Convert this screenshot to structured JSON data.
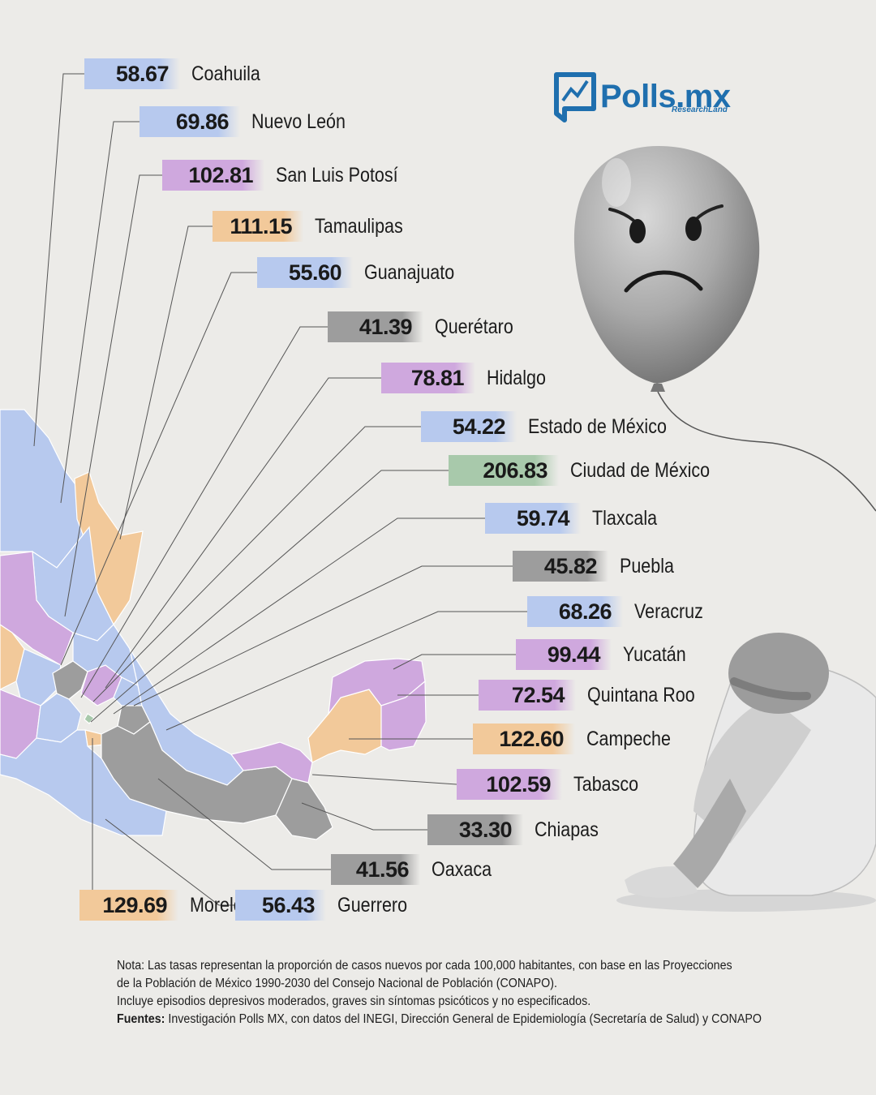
{
  "brand": {
    "name": "Polls.mx",
    "sub": "ResearchLand"
  },
  "colors": {
    "blue": "#b7c9ee",
    "purple": "#cfa8de",
    "orange": "#f2c99a",
    "gray": "#9d9d9d",
    "green": "#a8c9ab"
  },
  "chart_data": {
    "type": "table",
    "title": "",
    "categories": [
      "Coahuila",
      "Nuevo León",
      "San Luis Potosí",
      "Tamaulipas",
      "Guanajuato",
      "Querétaro",
      "Hidalgo",
      "Estado de México",
      "Ciudad de México",
      "Tlaxcala",
      "Puebla",
      "Veracruz",
      "Yucatán",
      "Quintana Roo",
      "Campeche",
      "Tabasco",
      "Chiapas",
      "Oaxaca",
      "Morelos",
      "Guerrero"
    ],
    "values": [
      58.67,
      69.86,
      102.81,
      111.15,
      55.6,
      41.39,
      78.81,
      54.22,
      206.83,
      59.74,
      45.82,
      68.26,
      99.44,
      72.54,
      122.6,
      102.59,
      33.3,
      41.56,
      129.69,
      56.43
    ],
    "labels": [
      "58.67",
      "69.86",
      "102.81",
      "111.15",
      "55.60",
      "41.39",
      "78.81",
      "54.22",
      "206.83",
      "59.74",
      "45.82",
      "68.26",
      "99.44",
      "72.54",
      "122.60",
      "102.59",
      "33.30",
      "41.56",
      "129.69",
      "56.43"
    ],
    "color_groups": [
      "blue",
      "blue",
      "purple",
      "orange",
      "blue",
      "gray",
      "purple",
      "blue",
      "green",
      "blue",
      "gray",
      "blue",
      "purple",
      "purple",
      "orange",
      "purple",
      "gray",
      "gray",
      "orange",
      "blue"
    ]
  },
  "note": {
    "line1": "Nota: Las tasas representan la proporción de casos nuevos por cada 100,000 habitantes, con base en las Proyecciones",
    "line2": "de la Población de México 1990-2030 del Consejo Nacional de Población (CONAPO).",
    "line3": "Incluye episodios depresivos moderados, graves sin síntomas psicóticos y no especificados.",
    "sources_label": "Fuentes:",
    "sources_text": " Investigación Polls MX, con datos del INEGI, Dirección General de Epidemiología (Secretaría de Salud) y CONAPO"
  }
}
